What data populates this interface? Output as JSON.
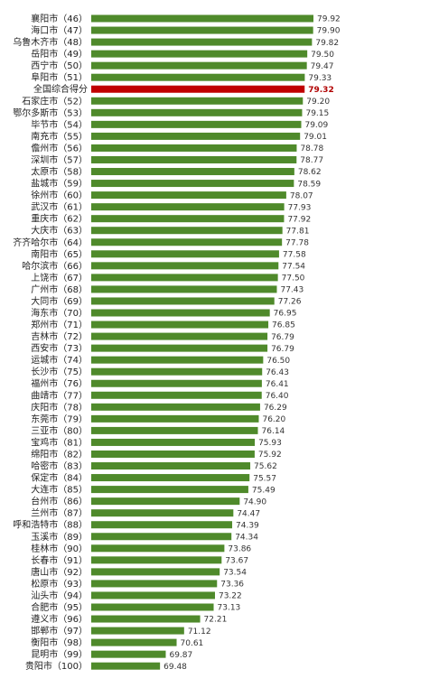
{
  "chart_data": {
    "type": "bar",
    "orientation": "horizontal",
    "categories": [
      "襄阳市（46）",
      "海口市（47）",
      "乌鲁木齐市（48）",
      "岳阳市（49）",
      "西宁市（50）",
      "阜阳市（51）",
      "全国综合得分",
      "石家庄市（52）",
      "鄂尔多斯市（53）",
      "毕节市（54）",
      "南充市（55）",
      "儋州市（56）",
      "深圳市（57）",
      "太原市（58）",
      "盐城市（59）",
      "徐州市（60）",
      "武汉市（61）",
      "重庆市（62）",
      "大庆市（63）",
      "齐齐哈尔市（64）",
      "南阳市（65）",
      "哈尔滨市（66）",
      "上饶市（67）",
      "广州市（68）",
      "大同市（69）",
      "海东市（70）",
      "郑州市（71）",
      "吉林市（72）",
      "西安市（73）",
      "运城市（74）",
      "长沙市（75）",
      "福州市（76）",
      "曲靖市（77）",
      "庆阳市（78）",
      "东莞市（79）",
      "三亚市（80）",
      "宝鸡市（81）",
      "绵阳市（82）",
      "哈密市（83）",
      "保定市（84）",
      "大连市（85）",
      "台州市（86）",
      "兰州市（87）",
      "呼和浩特市（88）",
      "玉溪市（89）",
      "桂林市（90）",
      "长春市（91）",
      "唐山市（92）",
      "松原市（93）",
      "汕头市（94）",
      "合肥市（95）",
      "遵义市（96）",
      "邯郸市（97）",
      "衡阳市（98）",
      "昆明市（99）",
      "贵阳市（100）"
    ],
    "values": [
      79.92,
      79.9,
      79.82,
      79.5,
      79.47,
      79.33,
      79.32,
      79.2,
      79.15,
      79.09,
      79.01,
      78.78,
      78.77,
      78.62,
      78.59,
      78.07,
      77.93,
      77.92,
      77.81,
      77.78,
      77.58,
      77.54,
      77.5,
      77.43,
      77.26,
      76.95,
      76.85,
      76.79,
      76.79,
      76.5,
      76.43,
      76.41,
      76.4,
      76.29,
      76.2,
      76.14,
      75.93,
      75.92,
      75.62,
      75.57,
      75.49,
      74.9,
      74.47,
      74.39,
      74.34,
      73.86,
      73.67,
      73.54,
      73.36,
      73.22,
      73.13,
      72.21,
      71.12,
      70.61,
      69.87,
      69.48
    ],
    "value_labels": [
      "79.92",
      "79.90",
      "79.82",
      "79.50",
      "79.47",
      "79.33",
      "79.32",
      "79.20",
      "79.15",
      "79.09",
      "79.01",
      "78.78",
      "78.77",
      "78.62",
      "78.59",
      "78.07",
      "77.93",
      "77.92",
      "77.81",
      "77.78",
      "77.58",
      "77.54",
      "77.50",
      "77.43",
      "77.26",
      "76.95",
      "76.85",
      "76.79",
      "76.79",
      "76.50",
      "76.43",
      "76.41",
      "76.40",
      "76.29",
      "76.20",
      "76.14",
      "75.93",
      "75.92",
      "75.62",
      "75.57",
      "75.49",
      "74.90",
      "74.47",
      "74.39",
      "74.34",
      "73.86",
      "73.67",
      "73.54",
      "73.36",
      "73.22",
      "73.13",
      "72.21",
      "71.12",
      "70.61",
      "69.87",
      "69.48"
    ],
    "highlight_category": "全国综合得分",
    "xlim": [
      64.8,
      79.92
    ],
    "grid": false,
    "legend": "none",
    "colors": {
      "bar": "#4f8a2b",
      "highlight_bar": "#c00000",
      "highlight_label": "#b00000"
    }
  }
}
